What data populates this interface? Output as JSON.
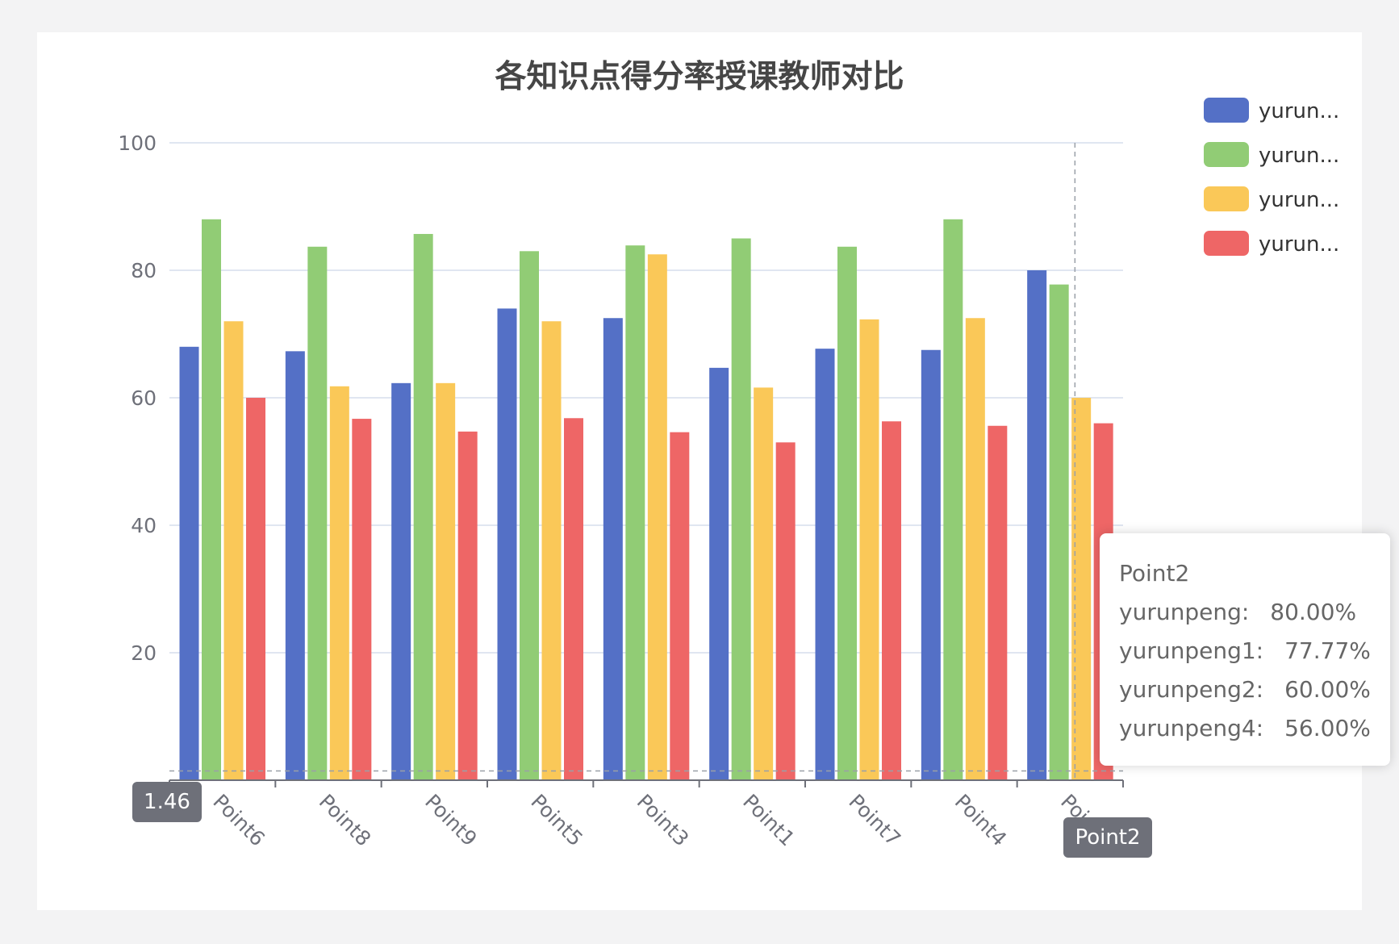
{
  "chart_data": {
    "type": "bar",
    "title": "各知识点得分率授课教师对比",
    "categories": [
      "Point6",
      "Point8",
      "Point9",
      "Point5",
      "Point3",
      "Point1",
      "Point7",
      "Point4",
      "Point2"
    ],
    "ylim": [
      0,
      100
    ],
    "yticks": [
      20,
      40,
      60,
      80,
      100
    ],
    "grid": true,
    "legend_position": "top-right",
    "series": [
      {
        "legend_label": "yurun...",
        "color": "#5470c6",
        "values": [
          68,
          67.3,
          62.3,
          74,
          72.5,
          64.7,
          67.7,
          67.5,
          80
        ]
      },
      {
        "legend_label": "yurun...",
        "color": "#91cc75",
        "values": [
          88,
          83.7,
          85.7,
          83,
          83.9,
          85,
          83.7,
          88,
          77.77
        ]
      },
      {
        "legend_label": "yurun...",
        "color": "#fac858",
        "values": [
          72,
          61.8,
          62.3,
          72,
          82.5,
          61.6,
          72.3,
          72.5,
          60
        ]
      },
      {
        "legend_label": "yurun...",
        "color": "#ee6666",
        "values": [
          60,
          56.7,
          54.7,
          56.8,
          54.6,
          53,
          56.3,
          55.6,
          56
        ]
      }
    ],
    "axis_pointer": {
      "y_value_label": "1.46",
      "x_category_label": "Point2"
    },
    "tooltip": {
      "title": "Point2",
      "rows": [
        {
          "name": "yurunpeng:",
          "value": "80.00%"
        },
        {
          "name": "yurunpeng1:",
          "value": "77.77%"
        },
        {
          "name": "yurunpeng2:",
          "value": "60.00%"
        },
        {
          "name": "yurunpeng4:",
          "value": "56.00%"
        }
      ]
    }
  }
}
